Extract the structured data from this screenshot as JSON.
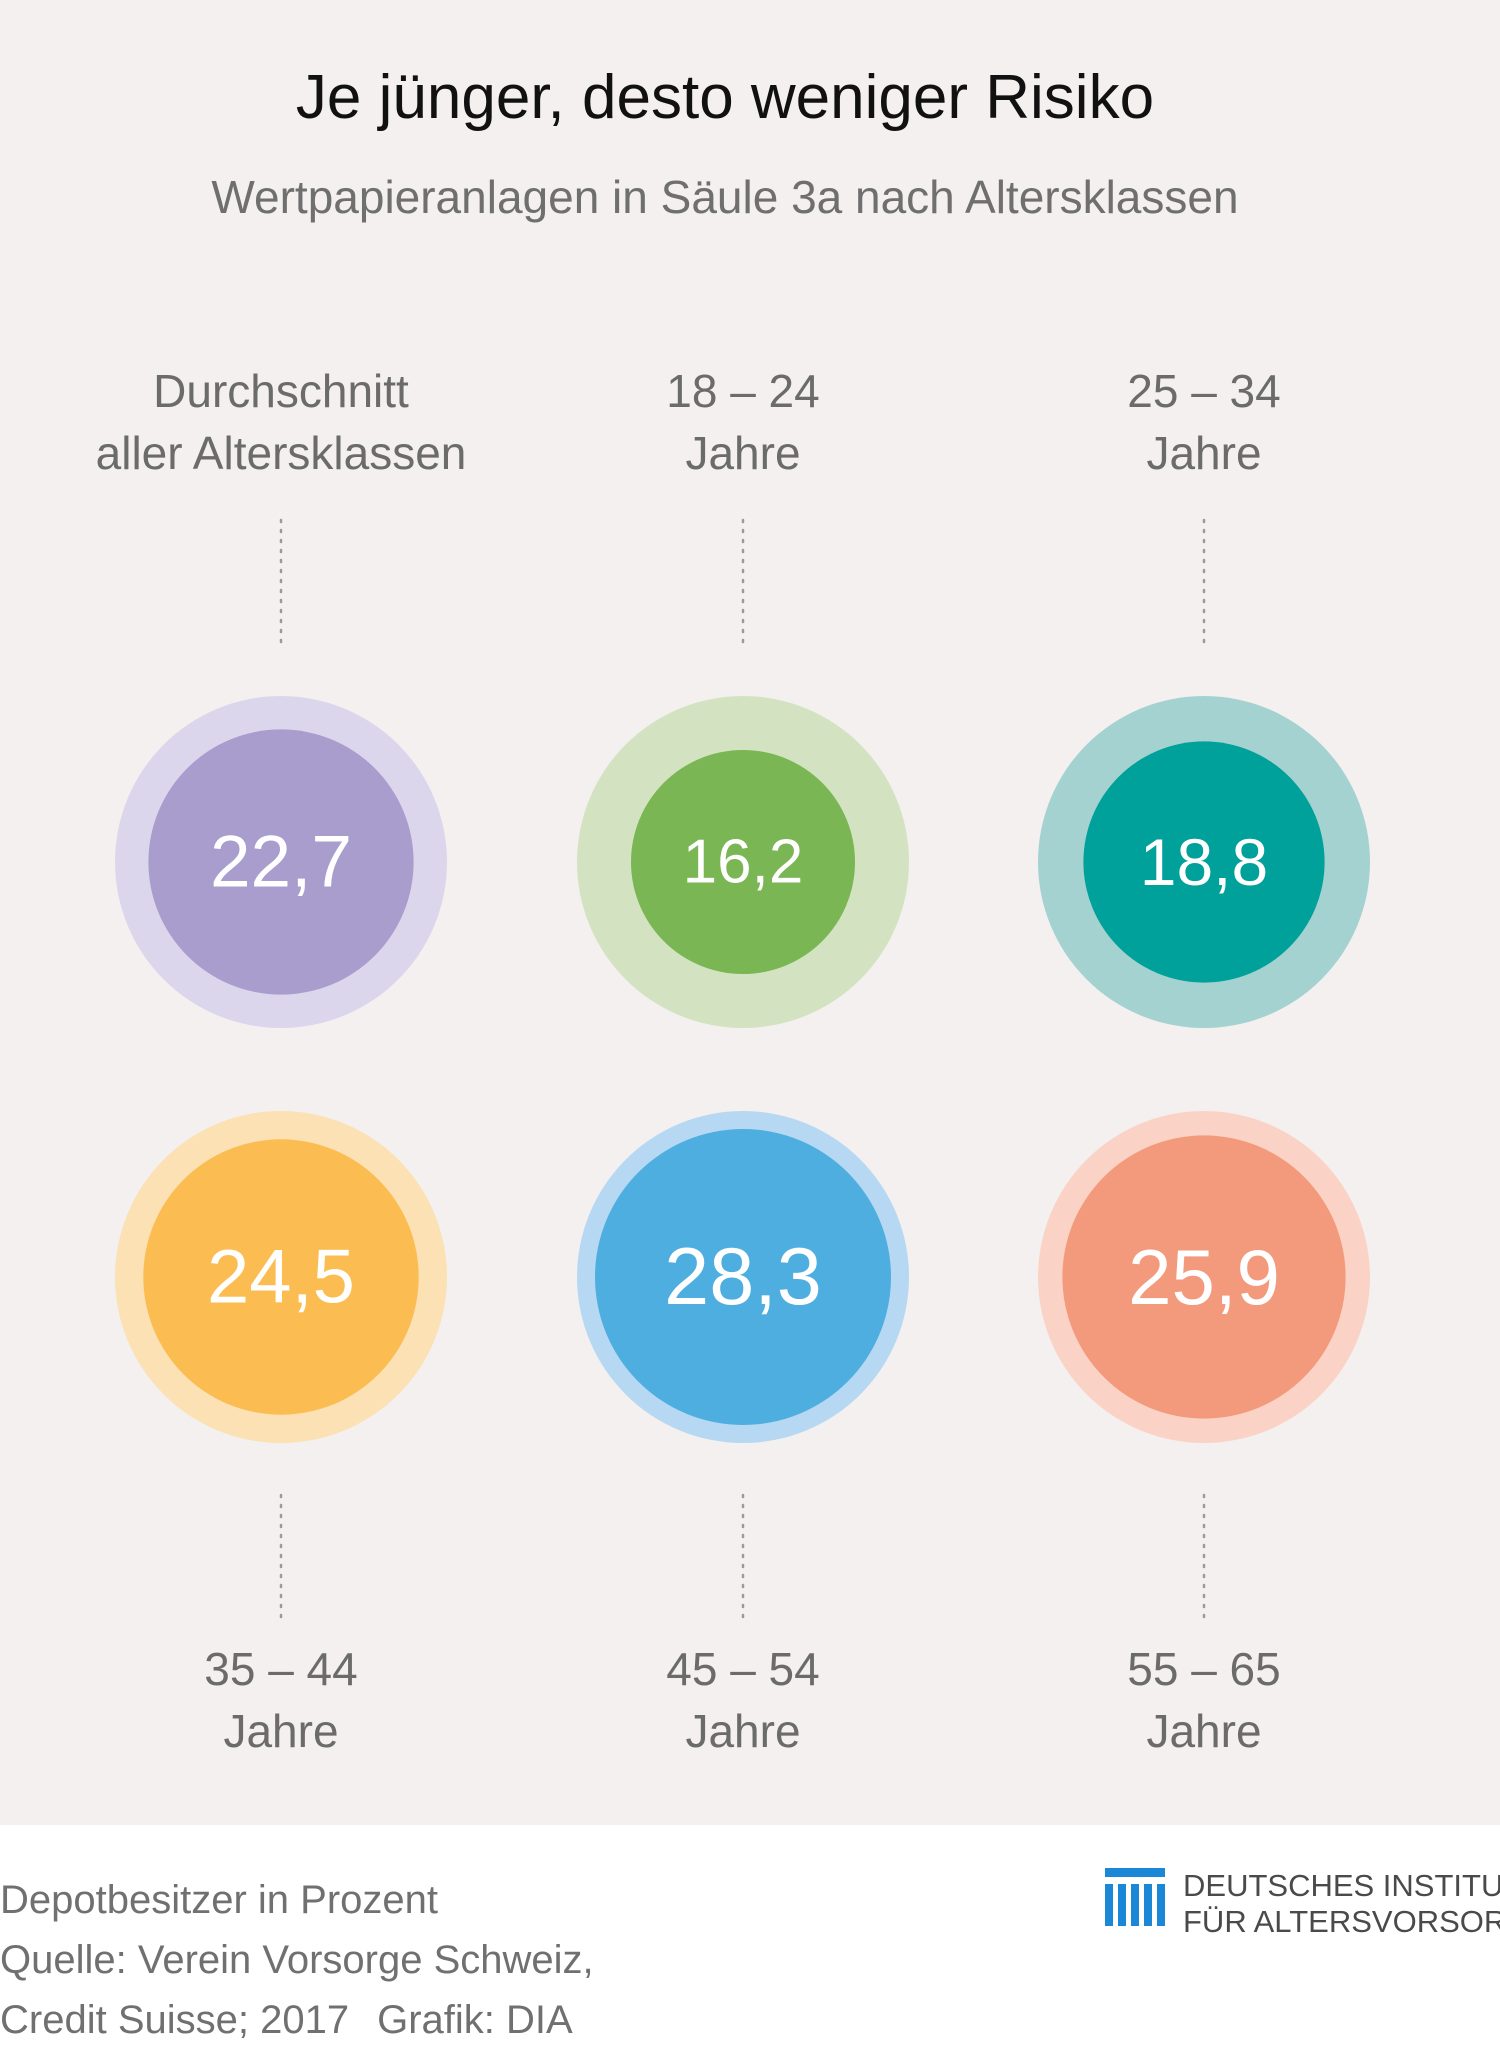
{
  "chart_data": {
    "type": "bubble",
    "title": "Je jünger, desto weniger Risiko",
    "subtitle": "Wertpapieranlagen in Säule 3a nach Altersklassen",
    "unit_note": "Depotbesitzer in Prozent",
    "items": [
      {
        "label_line1": "Durchschnitt",
        "label_line2": "aller Altersklassen",
        "value": 22.7,
        "value_text": "22,7",
        "color": "#a89dcd",
        "halo": "#dcd6ed"
      },
      {
        "label_line1": "18 – 24",
        "label_line2": "Jahre",
        "value": 16.2,
        "value_text": "16,2",
        "color": "#7ab653",
        "halo": "#d3e3c1"
      },
      {
        "label_line1": "25 – 34",
        "label_line2": "Jahre",
        "value": 18.8,
        "value_text": "18,8",
        "color": "#00a19a",
        "halo": "#a3d2d0"
      },
      {
        "label_line1": "35 – 44",
        "label_line2": "Jahre",
        "value": 24.5,
        "value_text": "24,5",
        "color": "#fbbd52",
        "halo": "#fbe1b3"
      },
      {
        "label_line1": "45 – 54",
        "label_line2": "Jahre",
        "value": 28.3,
        "value_text": "28,3",
        "color": "#4faee0",
        "halo": "#b6d8f2"
      },
      {
        "label_line1": "55 – 65",
        "label_line2": "Jahre",
        "value": 25.9,
        "value_text": "25,9",
        "color": "#f39a7d",
        "halo": "#fad3c6"
      }
    ]
  },
  "footer": {
    "line1": "Depotbesitzer in Prozent",
    "line2": "Quelle: Verein Vorsorge Schweiz,",
    "line3a": "Credit Suisse; 2017",
    "line3b": "Grafik: DIA"
  },
  "logo": {
    "line1": "DEUTSCHES INSTITUT",
    "line2": "FÜR ALTERSVORSORGE",
    "color": "#1a88d6"
  }
}
